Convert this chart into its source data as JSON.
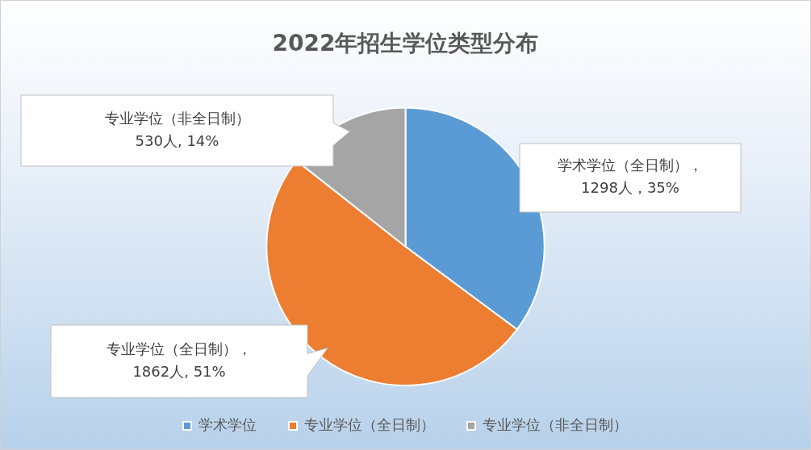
{
  "chart_data": {
    "type": "pie",
    "title": "2022年招生学位类型分布",
    "categories": [
      "学术学位",
      "专业学位（全日制）",
      "专业学位（非全日制）"
    ],
    "values": [
      1298,
      1862,
      530
    ],
    "colors": [
      "#5b9bd5",
      "#ed7d31",
      "#a5a5a5"
    ],
    "value_labels": [
      "学术学位（全日制），\n1298人，35%",
      "专业学位（全日制），\n1862人, 51%",
      "专业学位（非全日制）\n530人, 14%"
    ],
    "legend": "bottom"
  }
}
